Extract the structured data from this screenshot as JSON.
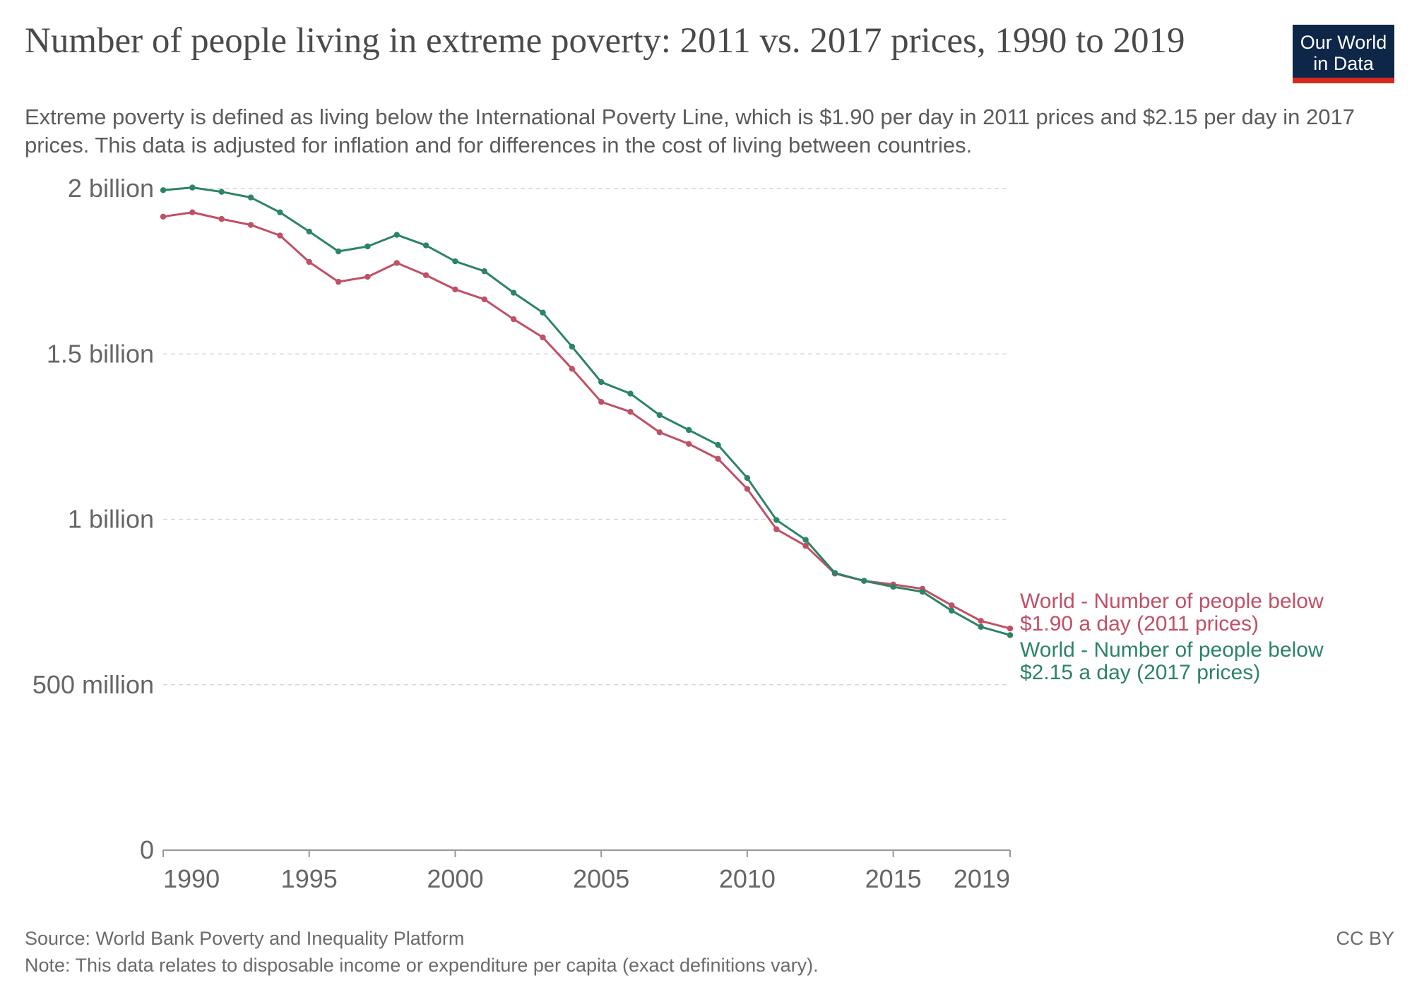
{
  "header": {
    "title": "Number of people living in extreme poverty: 2011 vs. 2017 prices, 1990 to 2019",
    "subtitle": "Extreme poverty is defined as living below the International Poverty Line, which is $1.90 per day in 2011 prices and $2.15 per day in 2017 prices. This data is adjusted for inflation and for differences in the cost of living between countries.",
    "logo_line1": "Our World",
    "logo_line2": "in Data"
  },
  "footer": {
    "source": "Source: World Bank Poverty and Inequality Platform",
    "note": "Note: This data relates to disposable income or expenditure per capita (exact definitions vary).",
    "license": "CC BY"
  },
  "colors": {
    "series_2011": "#c15065",
    "series_2017": "#2c8465",
    "logo_bg": "#0e2647",
    "logo_accent": "#d42b21"
  },
  "chart_data": {
    "type": "line",
    "xlim": [
      1990,
      2019
    ],
    "ylim": [
      0,
      2000000000
    ],
    "grid": true,
    "yticks": [
      {
        "value": 0,
        "label": "0"
      },
      {
        "value": 500000000,
        "label": "500 million"
      },
      {
        "value": 1000000000,
        "label": "1 billion"
      },
      {
        "value": 1500000000,
        "label": "1.5 billion"
      },
      {
        "value": 2000000000,
        "label": "2 billion"
      }
    ],
    "xticks": [
      {
        "value": 1990,
        "label": "1990"
      },
      {
        "value": 1995,
        "label": "1995"
      },
      {
        "value": 2000,
        "label": "2000"
      },
      {
        "value": 2005,
        "label": "2005"
      },
      {
        "value": 2010,
        "label": "2010"
      },
      {
        "value": 2015,
        "label": "2015"
      },
      {
        "value": 2019,
        "label": "2019"
      }
    ],
    "x": [
      1990,
      1991,
      1992,
      1993,
      1994,
      1995,
      1996,
      1997,
      1998,
      1999,
      2000,
      2001,
      2002,
      2003,
      2004,
      2005,
      2006,
      2007,
      2008,
      2009,
      2010,
      2011,
      2012,
      2013,
      2014,
      2015,
      2016,
      2017,
      2018,
      2019
    ],
    "series": [
      {
        "name": "World - Number of people below $1.90 a day (2011 prices)",
        "label_lines": [
          "World - Number of people below",
          "$1.90 a day (2011 prices)"
        ],
        "color": "#c15065",
        "values": [
          1915000000,
          1928000000,
          1908000000,
          1890000000,
          1858000000,
          1778000000,
          1718000000,
          1733000000,
          1775000000,
          1738000000,
          1695000000,
          1665000000,
          1605000000,
          1550000000,
          1455000000,
          1355000000,
          1325000000,
          1263000000,
          1228000000,
          1183000000,
          1092000000,
          970000000,
          920000000,
          836000000,
          814000000,
          803000000,
          790000000,
          740000000,
          693000000,
          670000000
        ]
      },
      {
        "name": "World - Number of people below $2.15 a day (2017 prices)",
        "label_lines": [
          "World - Number of people below",
          "$2.15 a day (2017 prices)"
        ],
        "color": "#2c8465",
        "values": [
          1995000000,
          2003000000,
          1990000000,
          1973000000,
          1928000000,
          1870000000,
          1810000000,
          1825000000,
          1860000000,
          1828000000,
          1780000000,
          1750000000,
          1685000000,
          1625000000,
          1522000000,
          1415000000,
          1380000000,
          1315000000,
          1270000000,
          1225000000,
          1125000000,
          998000000,
          938000000,
          838000000,
          814000000,
          796000000,
          781000000,
          724000000,
          675000000,
          650000000
        ]
      }
    ]
  }
}
